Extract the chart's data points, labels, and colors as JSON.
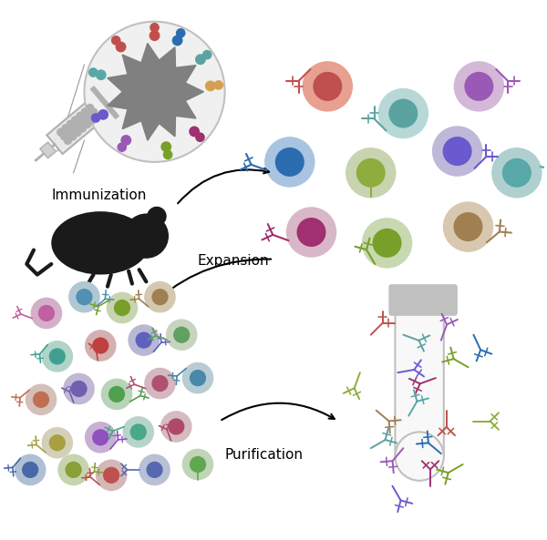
{
  "bg_color": "#ffffff",
  "label_immunization": "Immunization",
  "label_expansion": "Expansion",
  "label_purification": "Purification",
  "label_fontsize": 11,
  "ab_colors_tube": [
    "#c0504d",
    "#5ba3a0",
    "#9b59b6",
    "#2b6cb0",
    "#8fad3f",
    "#6a5acd",
    "#a03070",
    "#78a028",
    "#a08050",
    "#58a8a8"
  ],
  "antigen_colors": [
    "#c0504d",
    "#2b6cb0",
    "#5ba3a0",
    "#d4a050",
    "#a03070",
    "#78a028",
    "#9b59b6",
    "#6a5acd",
    "#58a8a8"
  ],
  "syringe_color": "#b0b0b0",
  "antigen_bg": "#f0f0f0",
  "antigen_core": "#808080",
  "mouse_color": "#1a1a1a",
  "tube_color": "#c0c0c0",
  "tube_bg": "#f8f8f8",
  "arrow_color": "#1a1a1a"
}
